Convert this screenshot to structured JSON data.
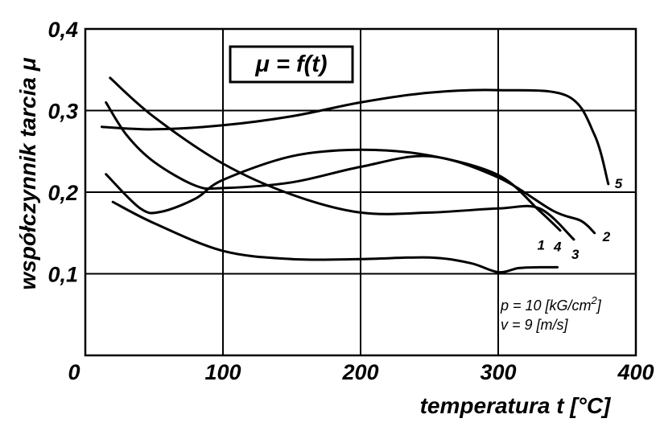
{
  "chart_data": {
    "type": "line",
    "formula": "μ = f(t)",
    "xlabel": "temperatura t [°C]",
    "ylabel": "współczynnik tarcia μ",
    "xlim": [
      0,
      400
    ],
    "ylim": [
      0,
      0.4
    ],
    "x_ticks": [
      0,
      100,
      200,
      300,
      400
    ],
    "x_tick_labels": [
      "0",
      "100",
      "200",
      "300",
      "400"
    ],
    "y_ticks": [
      0.1,
      0.2,
      0.3,
      0.4
    ],
    "y_tick_labels": [
      "0,1",
      "0,2",
      "0,3",
      "0,4"
    ],
    "grid": true,
    "conditions": [
      {
        "prefix": "p = 10 [kG/cm",
        "sup": "2",
        "suffix": "]"
      },
      {
        "prefix": "v = 9 [m/s]",
        "sup": "",
        "suffix": ""
      }
    ],
    "series": [
      {
        "name": "1",
        "x": [
          20,
          50,
          100,
          150,
          200,
          250,
          280,
          300,
          315,
          330,
          343
        ],
        "y": [
          0.188,
          0.162,
          0.128,
          0.118,
          0.118,
          0.12,
          0.113,
          0.102,
          0.107,
          0.108,
          0.108
        ]
      },
      {
        "name": "2",
        "x": [
          15,
          30,
          50,
          80,
          100,
          150,
          200,
          250,
          300,
          340,
          360,
          370
        ],
        "y": [
          0.31,
          0.27,
          0.237,
          0.208,
          0.205,
          0.212,
          0.231,
          0.244,
          0.218,
          0.177,
          0.165,
          0.15
        ]
      },
      {
        "name": "3",
        "x": [
          18,
          50,
          100,
          150,
          200,
          250,
          300,
          330,
          355
        ],
        "y": [
          0.34,
          0.292,
          0.235,
          0.197,
          0.175,
          0.175,
          0.18,
          0.18,
          0.142
        ]
      },
      {
        "name": "4",
        "x": [
          15,
          40,
          55,
          80,
          100,
          150,
          200,
          250,
          300,
          330,
          345
        ],
        "y": [
          0.222,
          0.18,
          0.176,
          0.192,
          0.215,
          0.244,
          0.252,
          0.245,
          0.221,
          0.177,
          0.153
        ]
      },
      {
        "name": "5",
        "x": [
          12,
          50,
          100,
          150,
          200,
          250,
          300,
          350,
          370,
          380
        ],
        "y": [
          0.28,
          0.277,
          0.282,
          0.293,
          0.31,
          0.322,
          0.325,
          0.318,
          0.27,
          0.21
        ]
      }
    ]
  }
}
